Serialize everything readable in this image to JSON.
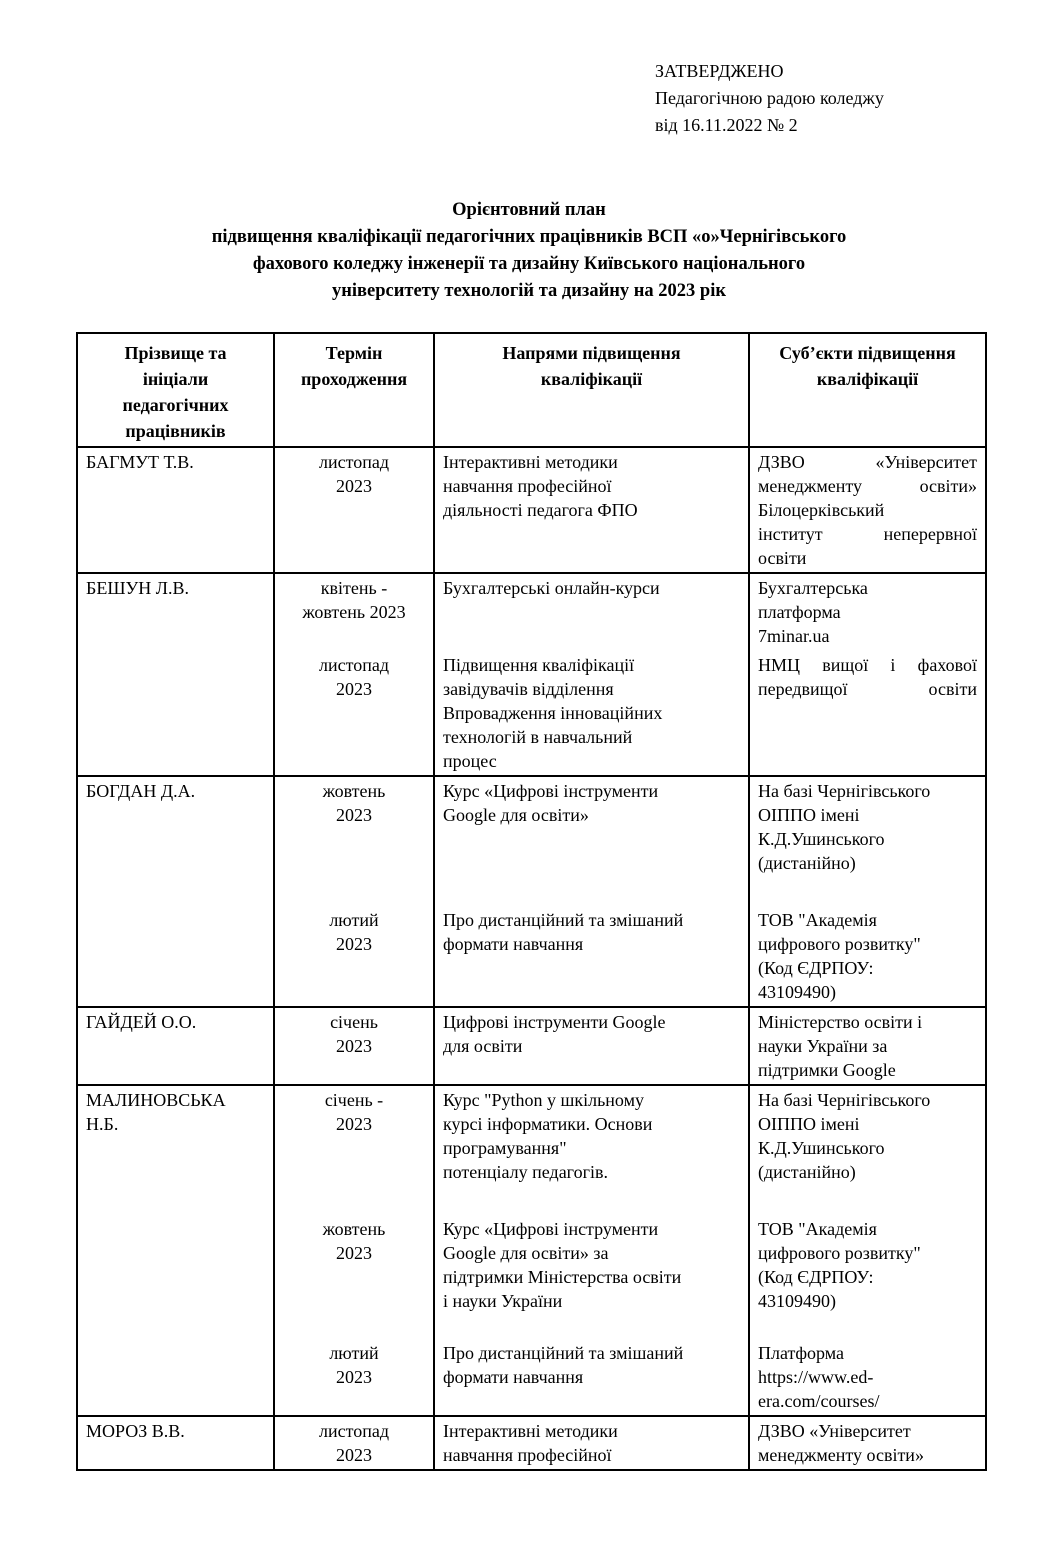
{
  "approval": {
    "lines": [
      "ЗАТВЕРДЖЕНО",
      "Педагогічною радою коледжу",
      "від 16.11.2022 № 2"
    ]
  },
  "title": "Орієнтовний план\nпідвищення кваліфікації педагогічних працівників ВСП «о»Чернігівського\nфахового коледжу інженерії та дизайну Київського національного\nуніверситету технологій та дизайну на 2023 рік",
  "table": {
    "headers": [
      "Прізвище та\nініціали\nпедагогічних\nпрацівників",
      "Термін\nпроходження",
      "Напрями підвищення\nкваліфікації",
      "Суб’єкти підвищення\nкваліфікації"
    ],
    "rows": [
      {
        "name": "БАГМУТ Т.В.",
        "entries": [
          {
            "term": "листопад\n2023",
            "direction": "Інтерактивні методики\nнавчання професійної\nдіяльності педагога ФПО",
            "subject": "ДЗВО «Університет\nменеджменту освіти»\nБілоцерківський\nінститут неперервної\nосвіти"
          }
        ]
      },
      {
        "name": "БЕШУН Л.В.",
        "entries": [
          {
            "term": "квітень -\nжовтень 2023",
            "direction": "Бухгалтерські онлайн-курси",
            "subject": "Бухгалтерська\nплатформа\n7minar.ua"
          },
          {
            "term": "листопад\n2023",
            "direction": "Підвищення кваліфікації\nзавідувачів відділення\nВпровадження інноваційних\nтехнологій  в навчальний\nпроцес",
            "subject": "НМЦ вищої і фахової\nпередвищої освіти"
          }
        ]
      },
      {
        "name": "БОГДАН Д.А.",
        "entries": [
          {
            "term": "жовтень\n2023",
            "direction": "Курс «Цифрові інструменти\nGoogle для освіти»",
            "subject": "На базі Чернігівського\nОІППО імені\nК.Д.Ушинського\n(дистанійно)"
          },
          {
            "term": "лютий\n2023",
            "direction": "Про дистанційний та змішаний\nформати навчання",
            "subject": "ТОВ \"Академія\nцифрового розвитку\"\n(Код ЄДРПОУ:\n43109490)"
          }
        ]
      },
      {
        "name": "ГАЙДЕЙ О.О.",
        "entries": [
          {
            "term": "січень\n2023",
            "direction": "Цифрові інструменти Google\nдля освіти",
            "subject": "Міністерство освіти і\nнауки України за\nпідтримки Google"
          }
        ]
      },
      {
        "name": "МАЛИНОВСЬКА\nН.Б.",
        "entries": [
          {
            "term": "січень -\n2023",
            "direction": "Курс \"Python у шкільному\nкурсі інформатики. Основи\nпрограмування\"\nпотенціалу педагогів.",
            "subject": "На базі Чернігівського\nОІППО імені\nК.Д.Ушинського\n(дистанійно)"
          },
          {
            "term": "жовтень\n2023",
            "direction": "Курс «Цифрові інструменти\nGoogle для освіти» за\nпідтримки Міністерства освіти\nі науки України",
            "subject": "ТОВ \"Академія\nцифрового розвитку\"\n(Код ЄДРПОУ:\n43109490)"
          },
          {
            "term": "лютий\n2023",
            "direction": "Про дистанційний та змішаний\nформати навчання",
            "subject": "Платформа\nhttps://www.ed-era.com/courses/"
          }
        ]
      },
      {
        "name": "МОРОЗ В.В.",
        "entries": [
          {
            "term": "листопад\n2023",
            "direction": "Інтерактивні методики\nнавчання професійної",
            "subject": "ДЗВО «Університет\nменеджменту освіти»"
          }
        ]
      }
    ]
  }
}
